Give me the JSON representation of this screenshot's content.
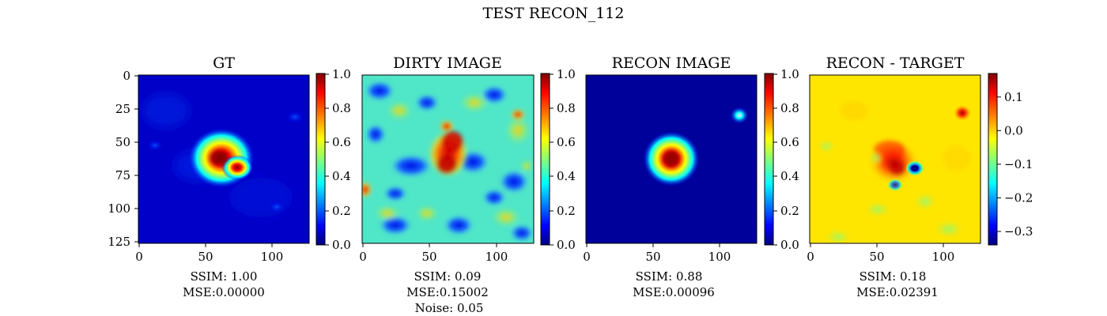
{
  "figure": {
    "title": "TEST RECON_112"
  },
  "colors": {
    "jet": [
      "#00007f",
      "#0000ff",
      "#00ffff",
      "#ffff00",
      "#ff0000",
      "#7f0000"
    ],
    "frame": "#000000"
  },
  "chart_data": [
    {
      "type": "heatmap",
      "title": "GT",
      "x_ticks": [
        "0",
        "50",
        "100"
      ],
      "y_ticks": [
        "0",
        "25",
        "50",
        "75",
        "100",
        "125"
      ],
      "image_size": [
        128,
        128
      ],
      "colorbar_ticks": [
        "0.0",
        "0.2",
        "0.4",
        "0.6",
        "0.8",
        "1.0"
      ],
      "colorbar_range": [
        0,
        1
      ],
      "colormap": "jet",
      "metrics": [
        "SSIM: 1.00",
        "MSE:0.00000"
      ]
    },
    {
      "type": "heatmap",
      "title": "DIRTY IMAGE",
      "x_ticks": [
        "0",
        "50",
        "100"
      ],
      "image_size": [
        128,
        128
      ],
      "colorbar_ticks": [
        "0.0",
        "0.2",
        "0.4",
        "0.6",
        "0.8",
        "1.0"
      ],
      "colorbar_range": [
        0,
        1
      ],
      "colormap": "jet",
      "metrics": [
        "SSIM: 0.09",
        "MSE:0.15002",
        "Noise: 0.05"
      ]
    },
    {
      "type": "heatmap",
      "title": "RECON IMAGE",
      "x_ticks": [
        "0",
        "50",
        "100"
      ],
      "image_size": [
        128,
        128
      ],
      "colorbar_ticks": [
        "0.0",
        "0.2",
        "0.4",
        "0.6",
        "0.8",
        "1.0"
      ],
      "colorbar_range": [
        0,
        1
      ],
      "colormap": "jet",
      "metrics": [
        "SSIM: 0.88",
        "MSE:0.00096"
      ]
    },
    {
      "type": "heatmap",
      "title": "RECON - TARGET",
      "x_ticks": [
        "0",
        "50",
        "100"
      ],
      "image_size": [
        128,
        128
      ],
      "colorbar_ticks": [
        "−0.3",
        "−0.2",
        "−0.1",
        "0.0",
        "0.1"
      ],
      "colorbar_tick_values": [
        -0.3,
        -0.2,
        -0.1,
        0.0,
        0.1
      ],
      "colorbar_range": [
        -0.34,
        0.17
      ],
      "colormap": "jet",
      "metrics": [
        "SSIM: 0.18",
        "MSE:0.02391"
      ]
    }
  ]
}
